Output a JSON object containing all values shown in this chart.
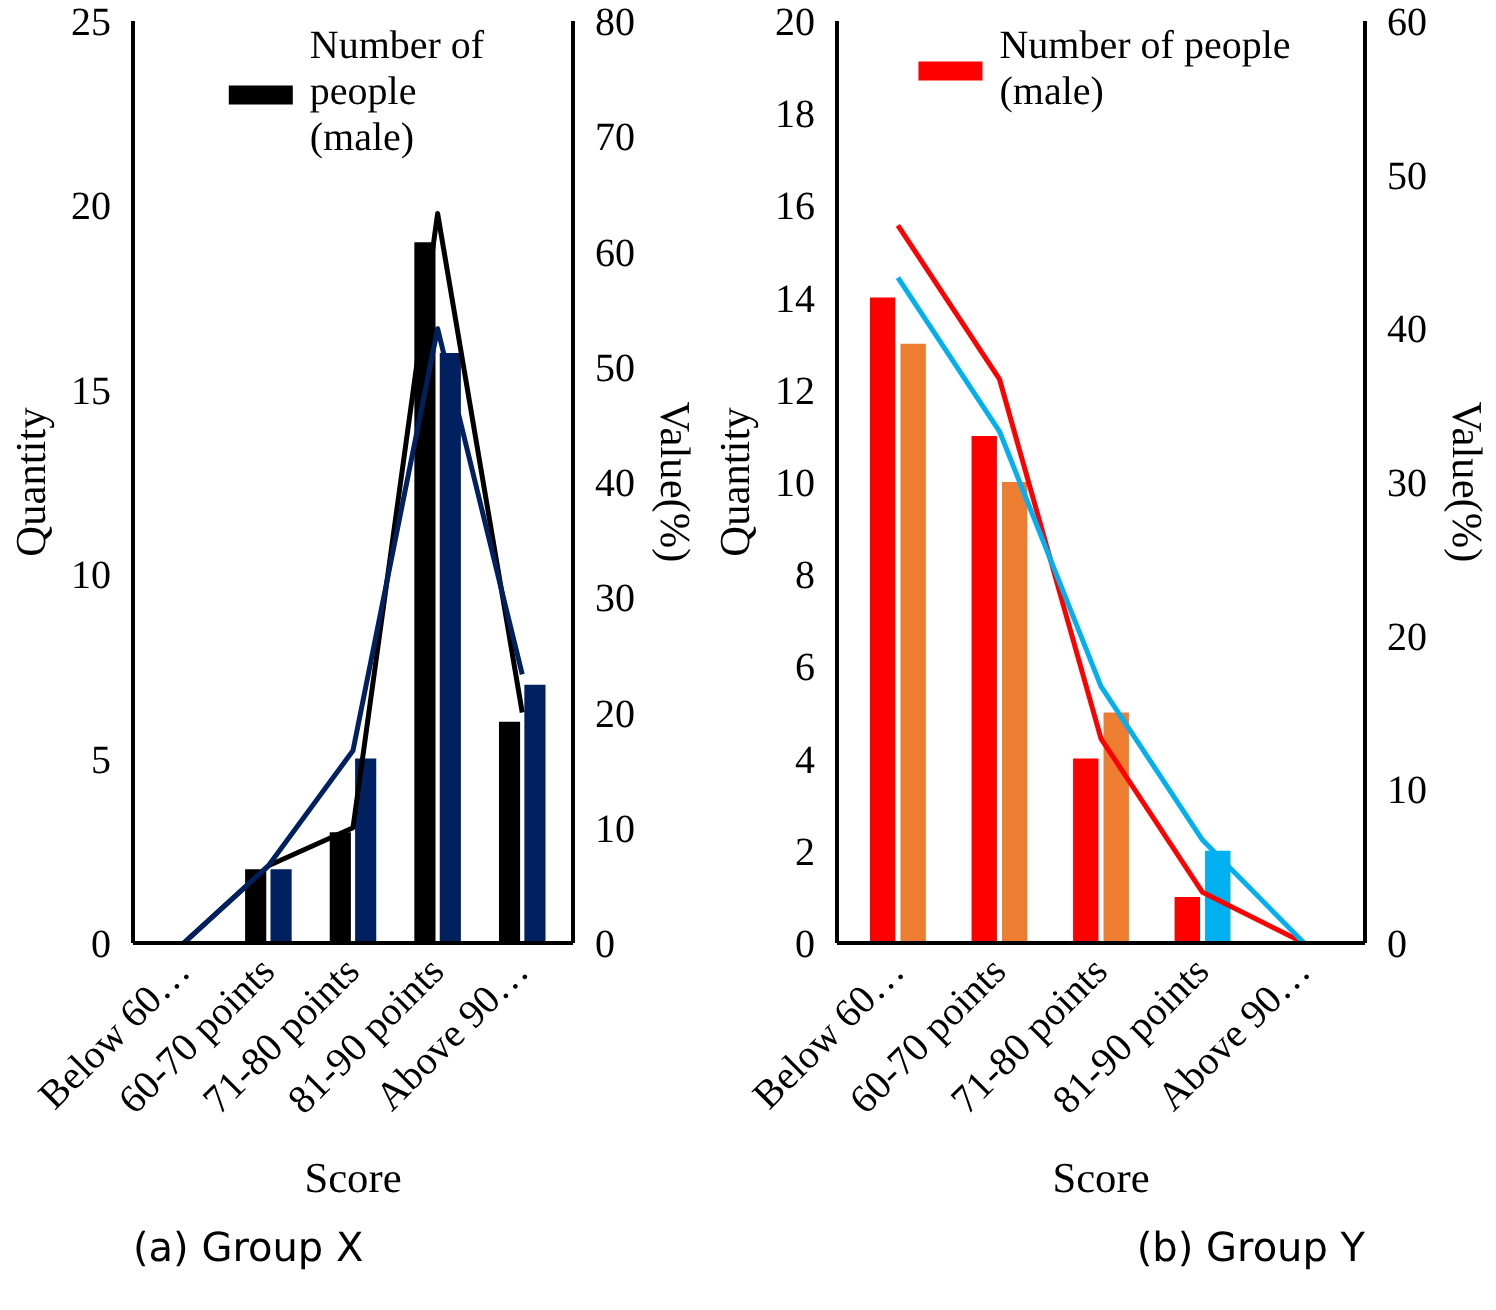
{
  "chart_data": [
    {
      "type": "bar",
      "title": "(a) Group X",
      "xlabel": "Score",
      "ylabel": "Quantity",
      "y2label": "Value(%)",
      "categories": [
        "Below 60…",
        "60-70 points",
        "71-80 points",
        "81-90 points",
        "Above 90…"
      ],
      "ylim": [
        0,
        25
      ],
      "yticks": [
        0,
        5,
        10,
        15,
        20,
        25
      ],
      "y2lim": [
        0,
        80
      ],
      "y2ticks": [
        0,
        10,
        20,
        30,
        40,
        50,
        60,
        70,
        80
      ],
      "legend": "top",
      "series": [
        {
          "name": "Number of people (male)",
          "color": "#000000",
          "values": [
            0,
            2,
            3,
            19,
            6
          ]
        },
        {
          "color": "#002060",
          "values": [
            0,
            2,
            5,
            16,
            7
          ]
        },
        {
          "type": "line",
          "axis": "y2",
          "color": "#000000",
          "values": [
            0,
            6.7,
            10,
            63.3,
            20
          ]
        },
        {
          "type": "line",
          "axis": "y2",
          "color": "#002060",
          "values": [
            0,
            6.7,
            16.7,
            53.3,
            23.3
          ]
        }
      ]
    },
    {
      "type": "bar",
      "title": "(b) Group Y",
      "xlabel": "Score",
      "ylabel": "Quantity",
      "y2label": "Value(%)",
      "categories": [
        "Below 60…",
        "60-70 points",
        "71-80 points",
        "81-90 points",
        "Above 90…"
      ],
      "ylim": [
        0,
        20
      ],
      "yticks": [
        0,
        2,
        4,
        6,
        8,
        10,
        12,
        14,
        16,
        18,
        20
      ],
      "y2lim": [
        0,
        60
      ],
      "y2ticks": [
        0,
        10,
        20,
        30,
        40,
        50,
        60
      ],
      "legend": "top",
      "series": [
        {
          "name": "Number of people (male)",
          "color": "#ff0000",
          "values": [
            14,
            11,
            4,
            1,
            0
          ]
        },
        {
          "colors": [
            "#ed7d31",
            "#ed7d31",
            "#ed7d31",
            "#00b0f0",
            "#ed7d31"
          ],
          "values": [
            13,
            10,
            5,
            2,
            0
          ]
        },
        {
          "type": "line",
          "axis": "y2",
          "color": "#ff0000",
          "values": [
            46.7,
            36.7,
            13.3,
            3.3,
            0
          ]
        },
        {
          "type": "line",
          "axis": "y2",
          "color": "#00b0f0",
          "values": [
            43.3,
            33.3,
            16.7,
            6.7,
            0
          ]
        }
      ]
    }
  ]
}
